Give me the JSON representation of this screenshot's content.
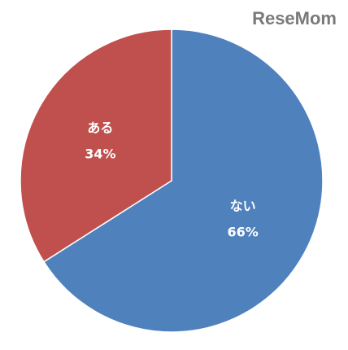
{
  "chart_data": {
    "type": "pie",
    "categories": [
      "ない",
      "ある"
    ],
    "values": [
      66,
      34
    ],
    "value_labels": [
      "66%",
      "34%"
    ],
    "colors": [
      "#4f81bd",
      "#c0504d"
    ],
    "watermark": "ReseMom"
  }
}
